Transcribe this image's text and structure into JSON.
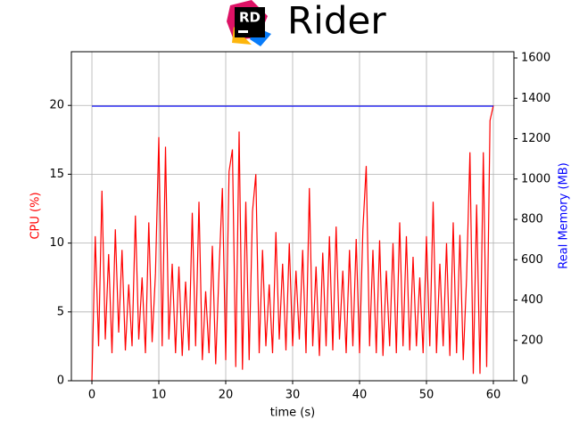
{
  "chart_data": {
    "type": "line",
    "title": "Rider",
    "logo": "RD",
    "xlabel": "time (s)",
    "ylabel": "CPU (%)",
    "y2label": "Real Memory (MB)",
    "xlim": [
      -3.07,
      63.07
    ],
    "xticks": [
      0,
      10,
      20,
      30,
      40,
      50,
      60
    ],
    "ylim": [
      0,
      23.9
    ],
    "yticks": [
      0,
      5,
      10,
      15,
      20
    ],
    "y2lim": [
      0,
      1631
    ],
    "y2ticks": [
      0,
      200,
      400,
      600,
      800,
      1000,
      1200,
      1400,
      1600
    ],
    "grid": true,
    "series": [
      {
        "name": "CPU (%)",
        "color": "#ff0000",
        "x": [
          0,
          0.5,
          1,
          1.5,
          2,
          2.5,
          3,
          3.5,
          4,
          4.5,
          5,
          5.5,
          6,
          6.5,
          7,
          7.5,
          8,
          8.5,
          9,
          9.5,
          10,
          10.5,
          11,
          11.5,
          12,
          12.5,
          13,
          13.5,
          14,
          14.5,
          15,
          15.5,
          16,
          16.5,
          17,
          17.5,
          18,
          18.5,
          19,
          19.5,
          20,
          20.5,
          21,
          21.5,
          22,
          22.5,
          23,
          23.5,
          24,
          24.5,
          25,
          25.5,
          26,
          26.5,
          27,
          27.5,
          28,
          28.5,
          29,
          29.5,
          30,
          30.5,
          31,
          31.5,
          32,
          32.5,
          33,
          33.5,
          34,
          34.5,
          35,
          35.5,
          36,
          36.5,
          37,
          37.5,
          38,
          38.5,
          39,
          39.5,
          40,
          40.5,
          41,
          41.5,
          42,
          42.5,
          43,
          43.5,
          44,
          44.5,
          45,
          45.5,
          46,
          46.5,
          47,
          47.5,
          48,
          48.5,
          49,
          49.5,
          50,
          50.5,
          51,
          51.5,
          52,
          52.5,
          53,
          53.5,
          54,
          54.5,
          55,
          55.5,
          56,
          56.5,
          57,
          57.5,
          58,
          58.5,
          59,
          59.5,
          60
        ],
        "values": [
          0,
          10.5,
          2.5,
          13.8,
          3,
          9.2,
          2,
          11,
          3.5,
          9.5,
          2.2,
          7,
          2.5,
          12,
          3,
          7.5,
          2,
          11.5,
          2.8,
          7.8,
          17.7,
          2.5,
          17,
          3,
          8.5,
          2,
          8.3,
          1.8,
          7.2,
          2.2,
          12.2,
          2.5,
          13,
          1.5,
          6.5,
          2,
          9.8,
          1.2,
          8,
          14,
          1.5,
          15.2,
          16.8,
          1,
          18.1,
          0.8,
          13,
          1.5,
          12.3,
          15,
          2,
          9.5,
          2.5,
          7,
          2,
          10.8,
          3,
          8.5,
          2.2,
          10,
          2.5,
          8,
          3,
          9.5,
          2,
          14,
          2.5,
          8.3,
          1.8,
          9.3,
          2.5,
          10.5,
          2.2,
          11.2,
          3,
          8,
          2,
          9.5,
          2.5,
          10.3,
          2,
          11,
          15.6,
          2.5,
          9.5,
          2,
          10.2,
          1.8,
          8,
          2.5,
          10,
          2,
          11.5,
          2.5,
          10.5,
          2.2,
          9,
          2.5,
          7.5,
          2,
          10.5,
          2.5,
          13,
          2,
          8.5,
          2.5,
          10,
          1.8,
          11.5,
          2,
          10.6,
          1.5,
          7.5,
          16.6,
          0.5,
          12.8,
          0.5,
          16.6,
          1,
          18.9,
          20
        ]
      },
      {
        "name": "Real Memory (MB)",
        "color": "#0000ff",
        "axis": "y2",
        "x": [
          0,
          60
        ],
        "values": [
          1361,
          1361
        ]
      }
    ]
  }
}
